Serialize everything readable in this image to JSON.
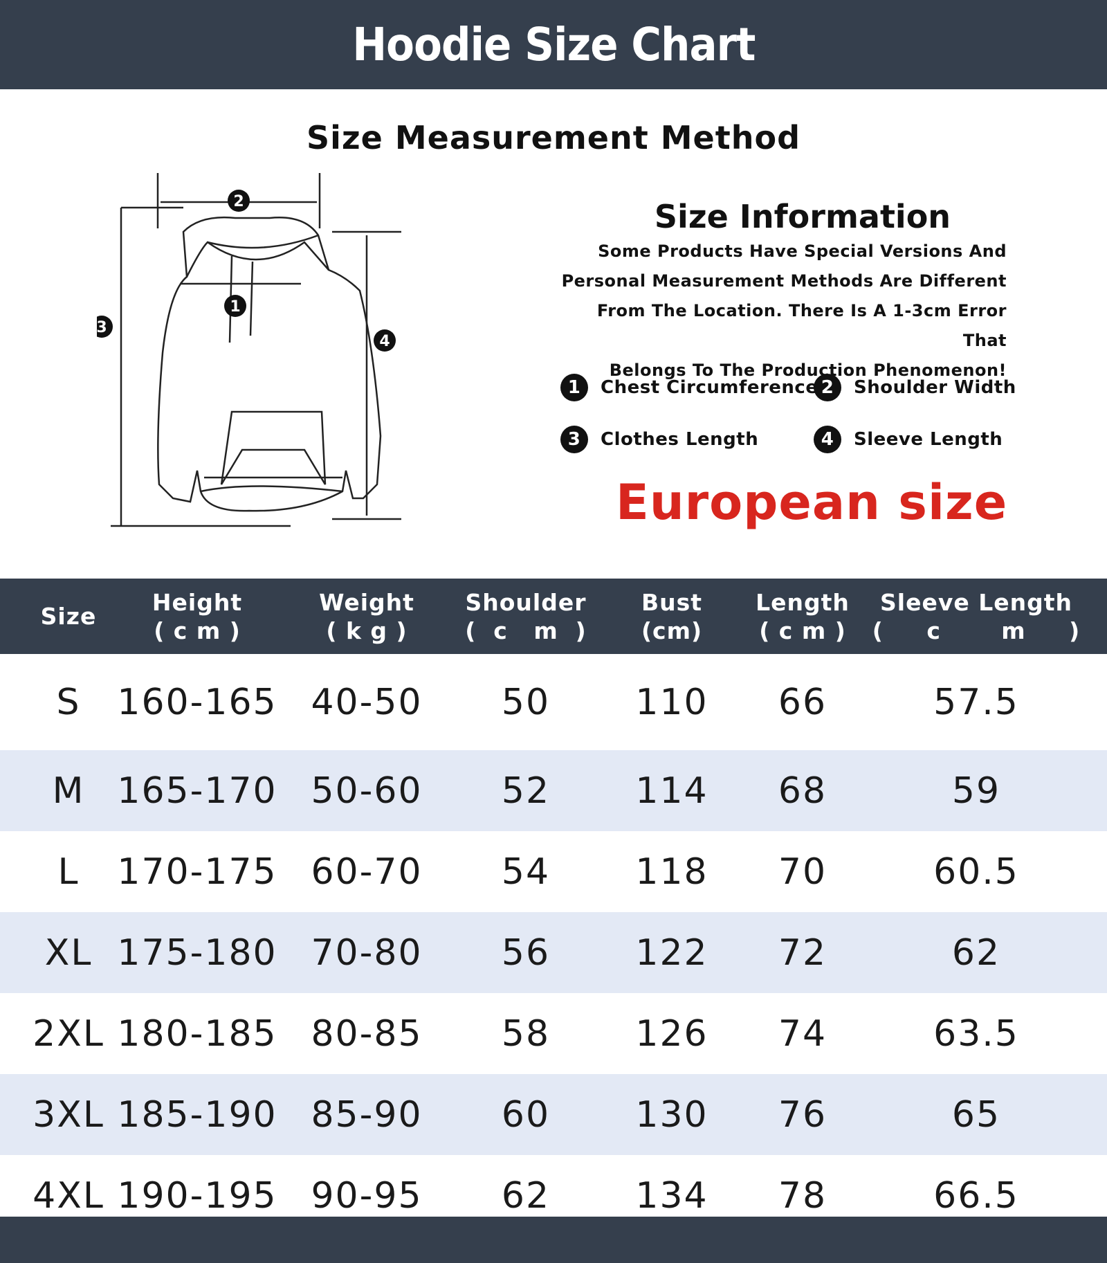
{
  "header": {
    "title": "Hoodie Size Chart"
  },
  "method": {
    "title": "Size Measurement Method"
  },
  "info": {
    "title": "Size Information",
    "text": [
      "Some Products Have Special Versions And",
      "Personal Measurement Methods Are Different",
      "From The Location. There Is A 1-3cm Error That",
      "Belongs To The Production Phenomenon!"
    ]
  },
  "legend": [
    {
      "num": "1",
      "label": "Chest Circumference"
    },
    {
      "num": "2",
      "label": "Shoulder Width"
    },
    {
      "num": "3",
      "label": "Clothes Length"
    },
    {
      "num": "4",
      "label": "Sleeve Length"
    }
  ],
  "region": {
    "label": "European size",
    "color": "#d8261e"
  },
  "colors": {
    "bar": "#353f4d",
    "row_alt": "#e3e9f5"
  },
  "table": {
    "headers": [
      [
        "Size",
        ""
      ],
      [
        "Height",
        "( c m )"
      ],
      [
        "Weight",
        "( k g )"
      ],
      [
        "Shoulder",
        "(  c   m  )"
      ],
      [
        "Bust",
        "(cm)"
      ],
      [
        "Length",
        "( c m )"
      ],
      [
        "Sleeve Length",
        "(     c       m     )"
      ]
    ],
    "rows": [
      [
        "S",
        "160-165",
        "40-50",
        "50",
        "110",
        "66",
        "57.5"
      ],
      [
        "M",
        "165-170",
        "50-60",
        "52",
        "114",
        "68",
        "59"
      ],
      [
        "L",
        "170-175",
        "60-70",
        "54",
        "118",
        "70",
        "60.5"
      ],
      [
        "XL",
        "175-180",
        "70-80",
        "56",
        "122",
        "72",
        "62"
      ],
      [
        "2XL",
        "180-185",
        "80-85",
        "58",
        "126",
        "74",
        "63.5"
      ],
      [
        "3XL",
        "185-190",
        "85-90",
        "60",
        "130",
        "76",
        "65"
      ],
      [
        "4XL",
        "190-195",
        "90-95",
        "62",
        "134",
        "78",
        "66.5"
      ]
    ]
  }
}
